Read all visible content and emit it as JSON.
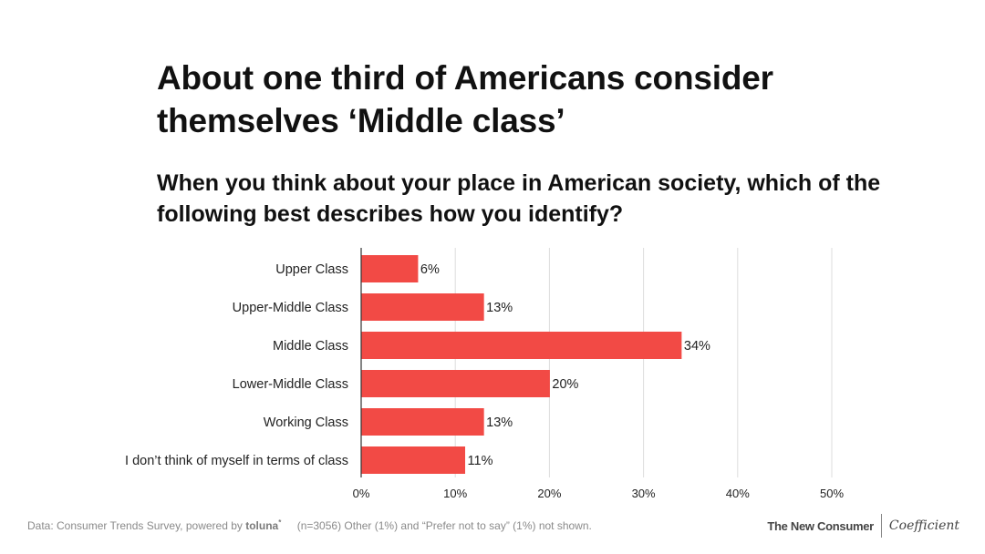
{
  "title": "About one third of Americans consider themselves ‘Middle class’",
  "subtitle": "When you think about your place in American society, which of the following best describes how you identify?",
  "chart_data": {
    "type": "bar",
    "orientation": "horizontal",
    "categories": [
      "Upper Class",
      "Upper-Middle Class",
      "Middle Class",
      "Lower-Middle Class",
      "Working Class",
      "I don’t think of myself in terms of class"
    ],
    "values": [
      6,
      13,
      34,
      20,
      13,
      11
    ],
    "value_labels": [
      "6%",
      "13%",
      "34%",
      "20%",
      "13%",
      "11%"
    ],
    "xlim": [
      0,
      50
    ],
    "xticks": [
      0,
      10,
      20,
      30,
      40,
      50
    ],
    "xtick_labels": [
      "0%",
      "10%",
      "20%",
      "30%",
      "40%",
      "50%"
    ],
    "grid": true,
    "bar_color": "#f24a45"
  },
  "footer": {
    "source_prefix": "Data: Consumer Trends Survey, powered by",
    "source_brand": "toluna",
    "source_brand_mark": "*",
    "note": "(n=3056) Other (1%) and “Prefer not to say” (1%) not shown.",
    "brand_primary": "The New Consumer",
    "brand_secondary": "Coefficient"
  }
}
